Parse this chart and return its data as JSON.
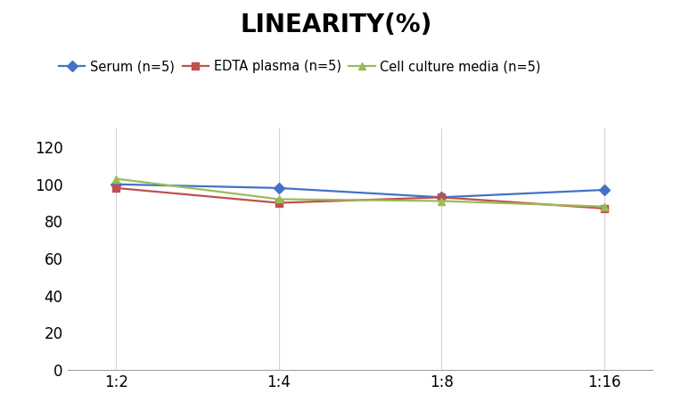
{
  "title": "LINEARITY(%)",
  "title_fontsize": 20,
  "title_fontweight": "bold",
  "x_labels": [
    "1:2",
    "1:4",
    "1:8",
    "1:16"
  ],
  "x_positions": [
    0,
    1,
    2,
    3
  ],
  "series": [
    {
      "label": "Serum (n=5)",
      "values": [
        100,
        98,
        93,
        97
      ],
      "color": "#4472C4",
      "marker": "D",
      "markersize": 6,
      "linewidth": 1.6
    },
    {
      "label": "EDTA plasma (n=5)",
      "values": [
        98,
        90,
        93,
        87
      ],
      "color": "#C0504D",
      "marker": "s",
      "markersize": 6,
      "linewidth": 1.6
    },
    {
      "label": "Cell culture media (n=5)",
      "values": [
        103,
        92,
        91,
        88
      ],
      "color": "#9BBB59",
      "marker": "^",
      "markersize": 6,
      "linewidth": 1.6
    }
  ],
  "ylim": [
    0,
    130
  ],
  "yticks": [
    0,
    20,
    40,
    60,
    80,
    100,
    120
  ],
  "grid_color": "#D3D3D3",
  "background_color": "#FFFFFF",
  "legend_fontsize": 10.5,
  "tick_fontsize": 12
}
